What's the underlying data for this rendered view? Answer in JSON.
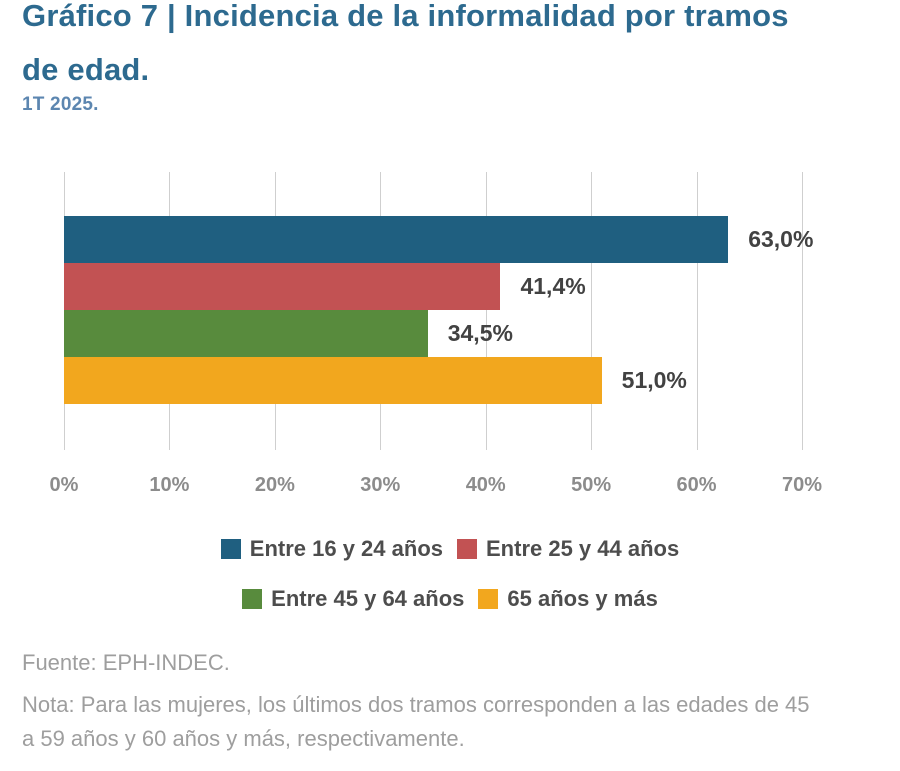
{
  "header": {
    "title": "Gráfico 7 | Incidencia de la informalidad por tramos de edad.",
    "subtitle": "1T 2025."
  },
  "chart_data": {
    "type": "bar",
    "orientation": "horizontal",
    "title": "Gráfico 7 | Incidencia de la informalidad por tramos de edad.",
    "subtitle": "1T 2025.",
    "categories": [
      "Entre 16 y 24 años",
      "Entre 25 y 44 años",
      "Entre 45 y 64 años",
      "65 años y más"
    ],
    "values": [
      63.0,
      41.4,
      34.5,
      51.0
    ],
    "value_labels": [
      "63,0%",
      "41,4%",
      "34,5%",
      "51,0%"
    ],
    "colors": [
      "#1f5f80",
      "#c25253",
      "#588b3d",
      "#f2a71e"
    ],
    "xlim": [
      0,
      70
    ],
    "x_ticks": [
      "0%",
      "10%",
      "20%",
      "30%",
      "40%",
      "50%",
      "60%",
      "70%"
    ],
    "grid": true,
    "legend_position": "bottom",
    "legend_items_per_row": 2
  },
  "footer": {
    "source": "Fuente: EPH-INDEC.",
    "note": "Nota: Para las mujeres, los últimos dos tramos corresponden a las edades de 45 a 59 años y 60 años y más, respectivamente."
  }
}
